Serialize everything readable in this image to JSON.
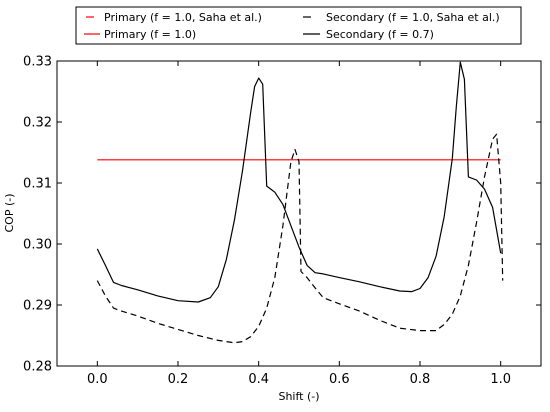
{
  "chart_data": {
    "type": "line",
    "xlabel": "Shift (-)",
    "ylabel": "COP (-)",
    "xlim": [
      -0.1,
      1.1
    ],
    "ylim": [
      0.28,
      0.33
    ],
    "xticks": [
      "0.0",
      "0.2",
      "0.4",
      "0.6",
      "0.8",
      "1.0"
    ],
    "yticks": [
      "0.28",
      "0.29",
      "0.30",
      "0.31",
      "0.32",
      "0.33"
    ],
    "grid": false,
    "legend_position": "top",
    "series": [
      {
        "name": "Primary (f = 1.0, Saha et al.)",
        "color": "#ff0000",
        "style": "dashed",
        "x": [],
        "y": []
      },
      {
        "name": "Primary (f = 1.0)",
        "color": "#ff0000",
        "style": "solid",
        "x": [
          0.0,
          1.0
        ],
        "y": [
          0.3138,
          0.3138
        ]
      },
      {
        "name": "Secondary (f = 1.0, Saha et al.)",
        "color": "#000000",
        "style": "dashed",
        "x": [
          0.0,
          0.02,
          0.04,
          0.06,
          0.1,
          0.15,
          0.2,
          0.25,
          0.3,
          0.34,
          0.36,
          0.38,
          0.4,
          0.42,
          0.44,
          0.46,
          0.48,
          0.49,
          0.5,
          0.505,
          0.52,
          0.54,
          0.56,
          0.6,
          0.65,
          0.7,
          0.75,
          0.8,
          0.84,
          0.86,
          0.88,
          0.9,
          0.92,
          0.94,
          0.96,
          0.98,
          0.99,
          1.0,
          1.005
        ],
        "y": [
          0.294,
          0.2915,
          0.2895,
          0.289,
          0.2882,
          0.287,
          0.286,
          0.285,
          0.2842,
          0.2838,
          0.284,
          0.2848,
          0.2865,
          0.2895,
          0.2945,
          0.303,
          0.3135,
          0.3155,
          0.3135,
          0.2955,
          0.2945,
          0.2928,
          0.2912,
          0.2902,
          0.289,
          0.2875,
          0.2862,
          0.2858,
          0.2858,
          0.2868,
          0.2885,
          0.2915,
          0.2965,
          0.3035,
          0.311,
          0.3172,
          0.318,
          0.31,
          0.294
        ]
      },
      {
        "name": "Secondary (f = 0.7)",
        "color": "#000000",
        "style": "solid",
        "x": [
          0.0,
          0.02,
          0.04,
          0.06,
          0.1,
          0.15,
          0.2,
          0.25,
          0.28,
          0.3,
          0.32,
          0.34,
          0.36,
          0.38,
          0.39,
          0.4,
          0.41,
          0.42,
          0.43,
          0.44,
          0.46,
          0.48,
          0.5,
          0.52,
          0.54,
          0.56,
          0.6,
          0.65,
          0.7,
          0.75,
          0.78,
          0.8,
          0.82,
          0.84,
          0.86,
          0.88,
          0.89,
          0.9,
          0.91,
          0.92,
          0.94,
          0.96,
          0.98,
          1.0
        ],
        "y": [
          0.2992,
          0.2965,
          0.2937,
          0.2932,
          0.2925,
          0.2915,
          0.2907,
          0.2905,
          0.2912,
          0.293,
          0.2975,
          0.304,
          0.312,
          0.3215,
          0.3258,
          0.3272,
          0.3262,
          0.3095,
          0.309,
          0.3085,
          0.3065,
          0.303,
          0.2995,
          0.2965,
          0.2953,
          0.2951,
          0.2945,
          0.2938,
          0.293,
          0.2923,
          0.2922,
          0.2927,
          0.2945,
          0.298,
          0.3045,
          0.314,
          0.3225,
          0.3298,
          0.327,
          0.311,
          0.3105,
          0.309,
          0.306,
          0.2985
        ]
      }
    ]
  }
}
